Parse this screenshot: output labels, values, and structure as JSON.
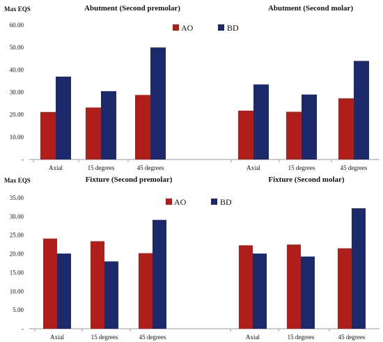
{
  "colors": {
    "AO": "#b01e1a",
    "BD": "#1c2a6b",
    "axis": "#999999",
    "text": "#111111"
  },
  "chart_data": [
    {
      "type": "bar",
      "panel": "abutment",
      "ylabel": "Max EQS",
      "ylim": [
        0,
        60
      ],
      "yticks": [
        "-",
        "10.00",
        "20.00",
        "30.00",
        "40.00",
        "50.00",
        "60.00"
      ],
      "legend": [
        "AO",
        "BD"
      ],
      "legend_position": "top-center",
      "groups": [
        {
          "title": "Abutment (Second premolar)",
          "categories": [
            "Axial",
            "15 degrees",
            "45 degrees"
          ],
          "series": [
            {
              "name": "AO",
              "values": [
                21.2,
                23.2,
                28.8
              ]
            },
            {
              "name": "BD",
              "values": [
                37.0,
                30.5,
                50.0
              ]
            }
          ]
        },
        {
          "title": "Abutment (Second molar)",
          "categories": [
            "Axial",
            "15 degrees",
            "45 degrees"
          ],
          "series": [
            {
              "name": "AO",
              "values": [
                21.8,
                21.3,
                27.3
              ]
            },
            {
              "name": "BD",
              "values": [
                33.5,
                29.0,
                44.0
              ]
            }
          ]
        }
      ]
    },
    {
      "type": "bar",
      "panel": "fixture",
      "ylabel": "Max EQS",
      "ylim": [
        0,
        35
      ],
      "yticks": [
        "-",
        "5.00",
        "10.00",
        "15.00",
        "20.00",
        "25.00",
        "30.00",
        "35.00"
      ],
      "legend": [
        "AO",
        "BD"
      ],
      "legend_position": "top-center",
      "groups": [
        {
          "title": "Fixture (Second premolar)",
          "categories": [
            "Axial",
            "15 degrees",
            "45 degrees"
          ],
          "series": [
            {
              "name": "AO",
              "values": [
                24.1,
                23.4,
                20.2
              ]
            },
            {
              "name": "BD",
              "values": [
                20.1,
                18.0,
                29.1
              ]
            }
          ]
        },
        {
          "title": "Fixture (Second molar)",
          "categories": [
            "Axial",
            "15 degrees",
            "45 degrees"
          ],
          "series": [
            {
              "name": "AO",
              "values": [
                22.3,
                22.5,
                21.5
              ]
            },
            {
              "name": "BD",
              "values": [
                20.1,
                19.3,
                32.2
              ]
            }
          ]
        }
      ]
    }
  ]
}
